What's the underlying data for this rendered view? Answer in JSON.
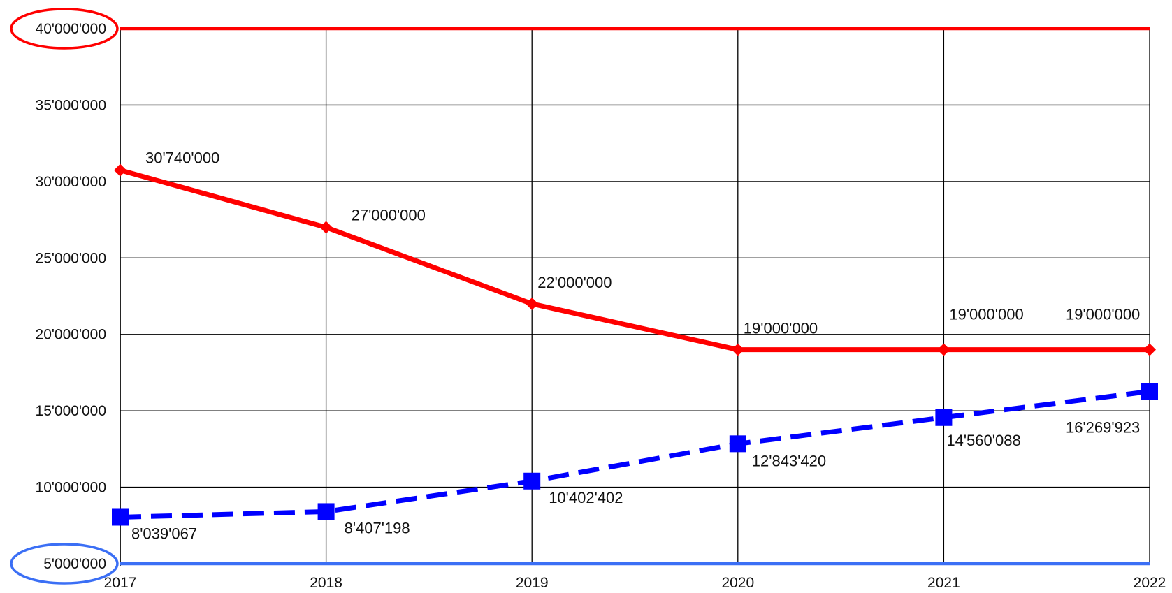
{
  "chart_data": {
    "type": "line",
    "x": [
      "2017",
      "2018",
      "2019",
      "2020",
      "2021",
      "2022"
    ],
    "y_ticks": [
      "5'000'000",
      "10'000'000",
      "15'000'000",
      "20'000'000",
      "25'000'000",
      "30'000'000",
      "35'000'000",
      "40'000'000"
    ],
    "ylim": [
      5000000,
      40000000
    ],
    "grid": true,
    "legend": "none",
    "series": [
      {
        "values": [
          30740000,
          27000000,
          22000000,
          19000000,
          19000000,
          19000000
        ],
        "labels": [
          "30'740'000",
          "27'000'000",
          "22'000'000",
          "19'000'000",
          "19'000'000",
          "19'000'000"
        ],
        "color": "#ff0000",
        "style": "solid",
        "marker": "diamond"
      },
      {
        "values": [
          8039067,
          8407198,
          10402402,
          12843420,
          14560088,
          16269923
        ],
        "labels": [
          "8'039'067",
          "8'407'198",
          "10'402'402",
          "12'843'420",
          "14'560'088",
          "16'269'923"
        ],
        "color": "#0000ff",
        "style": "dashed",
        "marker": "square"
      }
    ],
    "reference_lines": [
      {
        "value": 40000000,
        "color": "#ff0000"
      },
      {
        "value": 5000000,
        "color": "#3b6ff5"
      }
    ],
    "highlighted_ticks": [
      {
        "value": 40000000,
        "color": "#ff0000"
      },
      {
        "value": 5000000,
        "color": "#3b6ff5"
      }
    ]
  }
}
